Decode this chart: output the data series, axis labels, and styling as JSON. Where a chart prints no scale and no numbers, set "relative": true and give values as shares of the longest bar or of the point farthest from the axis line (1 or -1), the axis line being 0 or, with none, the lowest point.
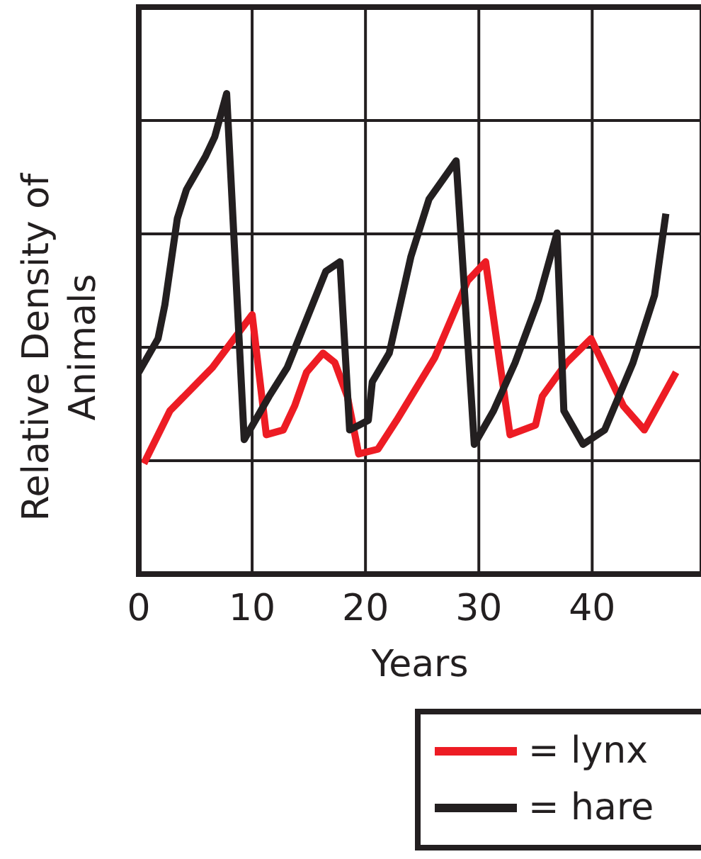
{
  "chart_data": {
    "type": "line",
    "xlabel": "Years",
    "ylabel": "Relative Density of Animals",
    "relative": true,
    "xlim": [
      0,
      49.6
    ],
    "xticks": [
      0,
      10,
      20,
      30,
      40
    ],
    "grid": true,
    "legend": "bottom right",
    "line_style": "solid",
    "marker": "none",
    "series": [
      {
        "name": "= lynx",
        "color": "#ed1c24",
        "x": [
          0.45,
          2.75,
          6.5,
          10.0,
          11.25,
          12.75,
          13.75,
          14.8,
          16.25,
          17.3,
          18.4,
          19.4,
          21.1,
          22.75,
          26.1,
          29,
          30.6,
          32.75,
          35.0,
          35.6,
          37.75,
          39.9,
          42.75,
          44.6,
          47.4
        ],
        "values": [
          0.23,
          0.34,
          0.43,
          0.54,
          0.29,
          0.3,
          0.35,
          0.42,
          0.46,
          0.44,
          0.37,
          0.25,
          0.26,
          0.32,
          0.45,
          0.61,
          0.65,
          0.29,
          0.31,
          0.37,
          0.44,
          0.49,
          0.35,
          0.3,
          0.42
        ]
      },
      {
        "name": "= hare",
        "color": "#231f20",
        "x": [
          0.0,
          1.7,
          2.3,
          3.4,
          4.2,
          5.9,
          6.7,
          7.75,
          9.3,
          11.5,
          13.1,
          14.8,
          16.5,
          17.75,
          18.6,
          20.25,
          20.6,
          22.1,
          24,
          25.6,
          28.0,
          29.6,
          31.3,
          33.2,
          35.25,
          36.9,
          37.5,
          39.2,
          41.1,
          43.6,
          45.5,
          46.5
        ],
        "values": [
          0.42,
          0.49,
          0.56,
          0.74,
          0.8,
          0.87,
          0.91,
          1.0,
          0.28,
          0.37,
          0.43,
          0.53,
          0.63,
          0.65,
          0.3,
          0.32,
          0.4,
          0.46,
          0.66,
          0.78,
          0.86,
          0.27,
          0.34,
          0.44,
          0.57,
          0.71,
          0.34,
          0.27,
          0.3,
          0.44,
          0.58,
          0.75
        ]
      }
    ]
  }
}
